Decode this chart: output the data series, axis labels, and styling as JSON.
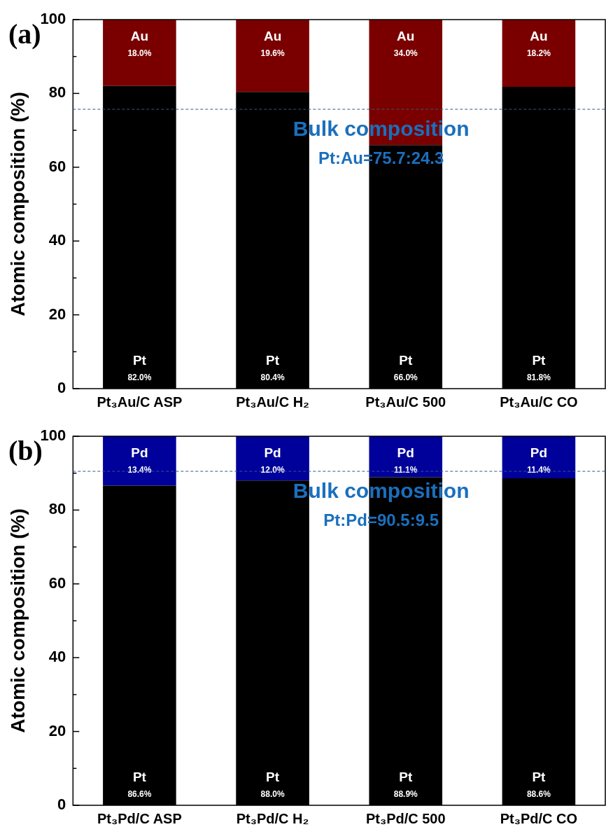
{
  "chart_data": [
    {
      "type": "bar",
      "title": "(a)",
      "ylabel": "Atomic composition (%)",
      "categories": [
        "Pt₃Au/C ASP",
        "Pt₃Au/C H₂",
        "Pt₃Au/C 500",
        "Pt₃Au/C CO"
      ],
      "stacked": true,
      "ylim": [
        0,
        100
      ],
      "yticks": [
        0,
        {
          "value": 10,
          "label": null
        },
        20,
        {
          "value": 30,
          "label": null
        },
        40,
        {
          "value": 50,
          "label": null
        },
        60,
        {
          "value": 70,
          "label": null
        },
        80,
        {
          "value": 90,
          "label": null
        },
        100
      ],
      "grid": false,
      "legend": false,
      "series": [
        {
          "name": "Pt",
          "color": "#000000",
          "values": [
            82.0,
            80.4,
            66.0,
            81.8
          ],
          "value_labels": [
            "82.0%",
            "80.4%",
            "66.0%",
            "81.8%"
          ]
        },
        {
          "name": "Au",
          "color": "#7a0000",
          "values": [
            18.0,
            19.6,
            34.0,
            18.2
          ],
          "value_labels": [
            "18.0%",
            "19.6%",
            "34.0%",
            "18.2%"
          ]
        }
      ],
      "ref_lines": [
        {
          "axis": "y",
          "value": 75.7,
          "label": "Bulk composition\nPt:Au=75.7:24.3",
          "color": "#2f5a85",
          "line_style": "dashed"
        }
      ]
    },
    {
      "type": "bar",
      "title": "(b)",
      "ylabel": "Atomic composition (%)",
      "categories": [
        "Pt₃Pd/C ASP",
        "Pt₃Pd/C H₂",
        "Pt₃Pd/C 500",
        "Pt₃Pd/C CO"
      ],
      "stacked": true,
      "ylim": [
        0,
        100
      ],
      "yticks": [
        0,
        {
          "value": 10,
          "label": null
        },
        20,
        {
          "value": 30,
          "label": null
        },
        40,
        {
          "value": 50,
          "label": null
        },
        60,
        {
          "value": 70,
          "label": null
        },
        80,
        {
          "value": 90,
          "label": null
        },
        100
      ],
      "grid": false,
      "legend": false,
      "series": [
        {
          "name": "Pt",
          "color": "#000000",
          "values": [
            86.6,
            88.0,
            88.9,
            88.6
          ],
          "value_labels": [
            "86.6%",
            "88.0%",
            "88.9%",
            "88.6%"
          ]
        },
        {
          "name": "Pd",
          "color": "#00009a",
          "values": [
            13.4,
            12.0,
            11.1,
            11.4
          ],
          "value_labels": [
            "13.4%",
            "12.0%",
            "11.1%",
            "11.4%"
          ]
        }
      ],
      "ref_lines": [
        {
          "axis": "y",
          "value": 90.5,
          "label": "Bulk composition\nPt:Pd=90.5:9.5",
          "color": "#2f5a85",
          "line_style": "dashed"
        }
      ]
    }
  ]
}
